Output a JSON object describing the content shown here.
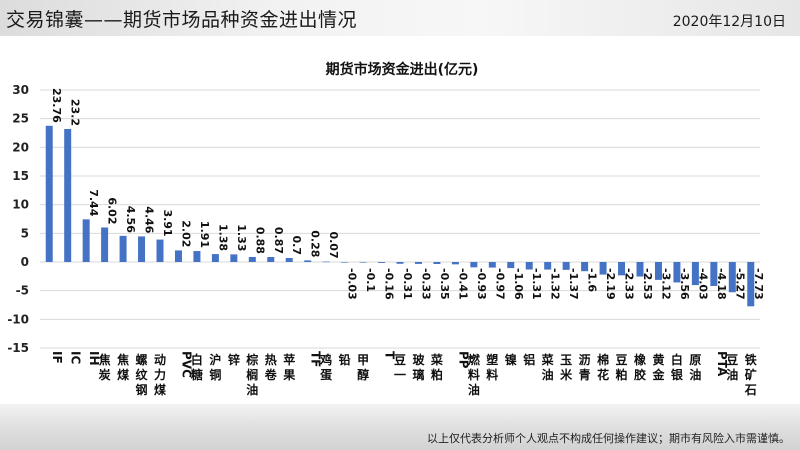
{
  "header": {
    "title": "交易锦囊——期货市场品种资金进出情况",
    "date": "2020年12月10日"
  },
  "footer": {
    "disclaimer": "以上仅代表分析师个人观点不构成任何操作建议；期市有风险入市需谨慎。"
  },
  "colors": {
    "bar": "#4472c4",
    "gridline": "#d9d9d9"
  },
  "chart_data": {
    "type": "bar",
    "title": "期货市场资金进出(亿元)",
    "xlabel": "",
    "ylabel": "",
    "ylim": [
      -15,
      30
    ],
    "yticks": [
      "30",
      "25",
      "20",
      "15",
      "10",
      "5",
      "0",
      "-5",
      "-10",
      "-15"
    ],
    "grid": true,
    "categories": [
      "IF",
      "IC",
      "IH",
      "焦炭",
      "焦煤",
      "螺纹钢",
      "动力煤",
      "PVC",
      "白糖",
      "沪铜",
      "锌",
      "棕榈油",
      "热卷",
      "苹果",
      "TF",
      "鸡蛋",
      "铅",
      "甲醇",
      "T",
      "豆一",
      "玻璃",
      "菜粕",
      "PP",
      "燃料油",
      "塑料",
      "镍",
      "铝",
      "菜油",
      "玉米",
      "沥青",
      "棉花",
      "豆粕",
      "橡胶",
      "黄金",
      "白银",
      "原油",
      "PTA",
      "豆油",
      "铁矿石"
    ],
    "values": [
      23.76,
      23.2,
      7.44,
      6.02,
      4.56,
      4.46,
      3.91,
      2.02,
      1.91,
      1.38,
      1.33,
      0.88,
      0.87,
      0.7,
      0.28,
      0.07,
      -0.03,
      -0.1,
      -0.16,
      -0.31,
      -0.33,
      -0.35,
      -0.41,
      -0.93,
      -0.97,
      -1.06,
      -1.31,
      -1.32,
      -1.37,
      -1.6,
      -2.19,
      -2.33,
      -2.53,
      -3.12,
      -3.56,
      -4.03,
      -4.18,
      -5.27,
      -7.73
    ],
    "value_labels": [
      "23.76",
      "23.2",
      "7.44",
      "6.02",
      "4.56",
      "4.46",
      "3.91",
      "2.02",
      "1.91",
      "1.38",
      "1.33",
      "0.88",
      "0.87",
      "0.7",
      "0.28",
      "0.07",
      "-0.03",
      "-0.1",
      "-0.16",
      "-0.31",
      "-0.33",
      "-0.35",
      "-0.41",
      "-0.93",
      "-0.97",
      "-1.06",
      "-1.31",
      "-1.32",
      "-1.37",
      "-1.6",
      "-2.19",
      "-2.33",
      "-2.53",
      "-3.12",
      "-3.56",
      "-4.03",
      "-4.18",
      "-5.27",
      "-7.73"
    ]
  }
}
